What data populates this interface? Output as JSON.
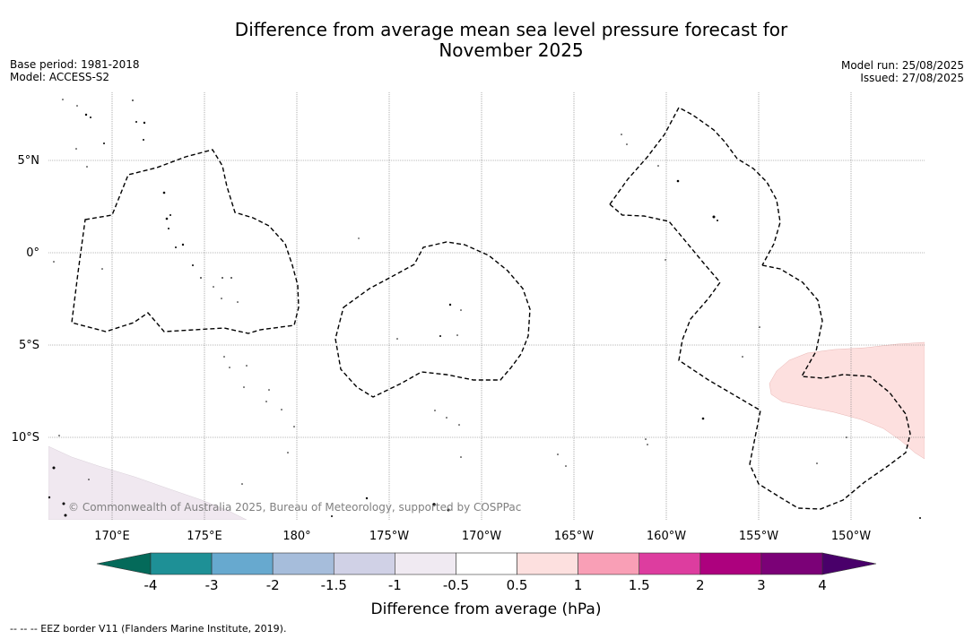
{
  "title": {
    "line1": "Difference from average mean sea level pressure forecast for",
    "line2": "November 2025"
  },
  "meta_left": {
    "base_period": "Base period: 1981-2018",
    "model": "Model: ACCESS-S2"
  },
  "meta_right": {
    "model_run": "Model run: 25/08/2025",
    "issued": "Issued: 27/08/2025"
  },
  "map": {
    "lat_labels": [
      "5°N",
      "0°",
      "5°S",
      "10°S"
    ],
    "lon_labels": [
      "170°E",
      "175°E",
      "180°",
      "175°W",
      "170°W",
      "165°W",
      "160°W",
      "155°W",
      "150°W"
    ],
    "copyright": "© Commonwealth of Australia 2025, Bureau of Meteorology, supported by COSPPac",
    "anomaly_regions": [
      {
        "name": "positive-anomaly",
        "range_hpa": [
          0.5,
          1
        ],
        "color": "#fde0df"
      },
      {
        "name": "negative-anomaly",
        "range_hpa": [
          -1,
          -0.5
        ],
        "color": "#f0e8f0"
      }
    ],
    "eez_color": "#000000",
    "land_color": "#000000"
  },
  "colorbar": {
    "label": "Difference from average (hPa)",
    "ticks": [
      "-4",
      "-3",
      "-2",
      "-1.5",
      "-1",
      "-0.5",
      "0.5",
      "1",
      "1.5",
      "2",
      "3",
      "4"
    ],
    "colors": [
      "#1e9096",
      "#67a9cf",
      "#a6bddb",
      "#d0d1e6",
      "#f0eaf2",
      "#ffffff",
      "#fde0df",
      "#f99fb6",
      "#dd3d9f",
      "#ad017e",
      "#7b0177"
    ],
    "under_color": "#046a5a",
    "over_color": "#49006a"
  },
  "footer": {
    "legend_text": "--  --  -- EEZ border V11 (Flanders Marine Institute, 2019)."
  }
}
